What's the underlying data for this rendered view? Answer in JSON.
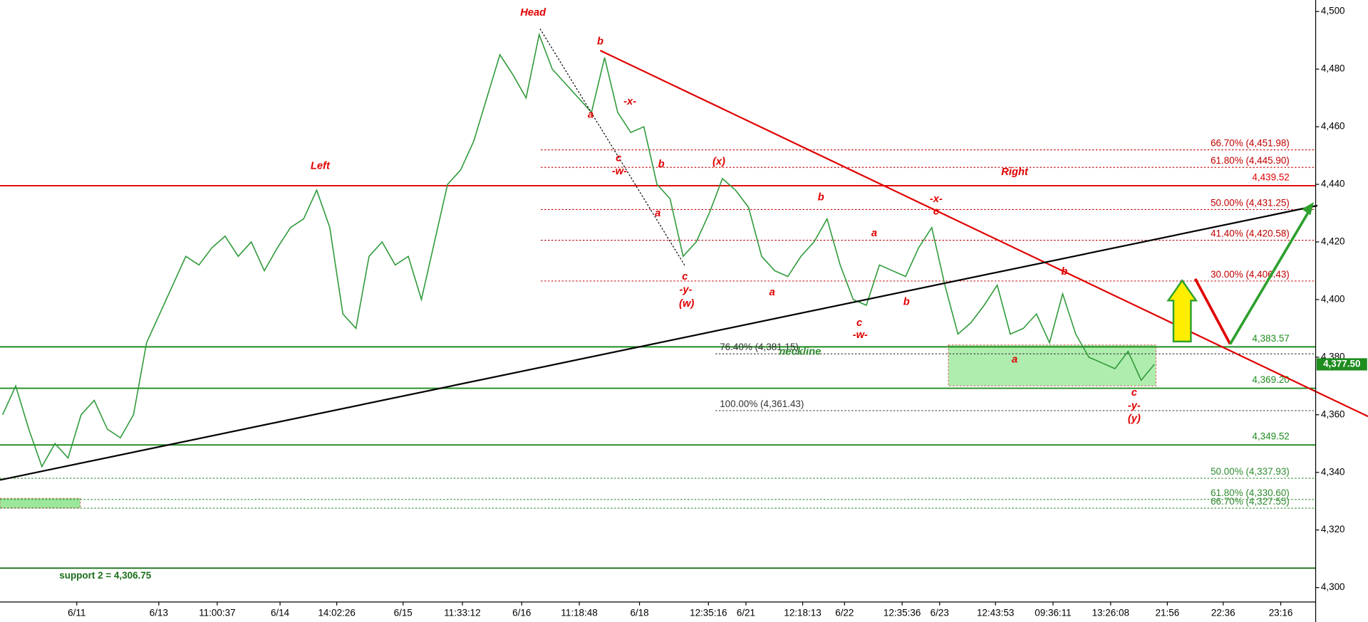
{
  "chart_data": {
    "type": "line",
    "series": [
      {
        "color": "#2f9a3a",
        "values": [
          4360,
          4370,
          4355,
          4342,
          4350,
          4345,
          4360,
          4365,
          4355,
          4352,
          4360,
          4385,
          4395,
          4405,
          4415,
          4412,
          4418,
          4422,
          4415,
          4420,
          4410,
          4418,
          4425,
          4428,
          4438,
          4425,
          4395,
          4390,
          4415,
          4420,
          4412,
          4415,
          4400,
          4420,
          4440,
          4445,
          4455,
          4470,
          4485,
          4478,
          4470,
          4492,
          4480,
          4475,
          4470,
          4465,
          4484,
          4465,
          4458,
          4460,
          4440,
          4435,
          4415,
          4420,
          4430,
          4442,
          4438,
          4432,
          4415,
          4410,
          4408,
          4415,
          4420,
          4428,
          4412,
          4400,
          4398,
          4412,
          4410,
          4408,
          4418,
          4425,
          4405,
          4388,
          4392,
          4398,
          4405,
          4388,
          4390,
          4395,
          4385,
          4402,
          4388,
          4380,
          4378,
          4376,
          4382,
          4372,
          4377.5
        ]
      }
    ],
    "ylim": [
      4295,
      4504
    ],
    "yticks": [
      {
        "value": 4300,
        "label": "4,300"
      },
      {
        "value": 4320,
        "label": "4,320"
      },
      {
        "value": 4340,
        "label": "4,340"
      },
      {
        "value": 4360,
        "label": "4,360"
      },
      {
        "value": 4380,
        "label": "4,380"
      },
      {
        "value": 4400,
        "label": "4,400"
      },
      {
        "value": 4420,
        "label": "4,420"
      },
      {
        "value": 4440,
        "label": "4,440"
      },
      {
        "value": 4460,
        "label": "4,460"
      },
      {
        "value": 4480,
        "label": "4,480"
      },
      {
        "value": 4500,
        "label": "4,500"
      }
    ],
    "x_tick_labels": [
      "6/11",
      "6/13",
      "11:00:37",
      "6/14",
      "14:02:26",
      "6/15",
      "11:33:12",
      "6/16",
      "11:18:48",
      "6/18",
      "12:35:16",
      "6/21",
      "12:18:13",
      "6/22",
      "12:35:36",
      "6/23",
      "12:43:53",
      "09:36:11",
      "13:26:08",
      "21:56",
      "22:36",
      "23:16"
    ],
    "levels": [
      {
        "value": 4439.52,
        "label": "4,439.52",
        "color": "#e00000"
      },
      {
        "value": 4383.57,
        "label": "4,383.57",
        "color": "#1e8c1e"
      },
      {
        "value": 4369.2,
        "label": "4,369.20",
        "color": "#1e8c1e"
      },
      {
        "value": 4349.52,
        "label": "4,349.52",
        "color": "#1e8c1e"
      }
    ],
    "fib_upper": {
      "color": "#c00000",
      "levels": [
        {
          "value": 4451.98,
          "label": "66.70% (4,451.98)"
        },
        {
          "value": 4445.9,
          "label": "61.80% (4,445.90)"
        },
        {
          "value": 4431.25,
          "label": "50.00% (4,431.25)"
        },
        {
          "value": 4420.58,
          "label": "41.40% (4,420.58)"
        },
        {
          "value": 4406.43,
          "label": "30.00% (4,406.43)"
        }
      ]
    },
    "fib_lower": {
      "color": "#2e8b2e",
      "levels": [
        {
          "value": 4337.93,
          "label": "50.00% (4,337.93)"
        },
        {
          "value": 4330.6,
          "label": "61.80% (4,330.60)"
        },
        {
          "value": 4327.55,
          "label": "66.70% (4,327.55)"
        }
      ]
    },
    "fib_mid": {
      "color": "#333333",
      "levels": [
        {
          "value": 4381.15,
          "label": "76.40% (4,381.15)"
        },
        {
          "value": 4361.43,
          "label": "100.00% (4,361.43)"
        }
      ]
    },
    "support": {
      "value": 4306.75,
      "label": "support 2 = 4,306.75",
      "color": "#1a6e1a"
    },
    "last_price": {
      "value": 4377.5,
      "label": "4,377.50",
      "color": "#1e8c1e"
    },
    "annotations": [
      {
        "text": "Head",
        "color": "#e00000"
      },
      {
        "text": "Left",
        "color": "#e00000"
      },
      {
        "text": "Right",
        "color": "#e00000"
      },
      {
        "text": "neckline",
        "color": "#2e8b2e"
      },
      {
        "text": "b",
        "color": "#e00000"
      },
      {
        "text": "-x-",
        "color": "#e00000"
      },
      {
        "text": "a",
        "color": "#e00000"
      },
      {
        "text": "c",
        "color": "#e00000"
      },
      {
        "text": "-w-",
        "color": "#e00000"
      },
      {
        "text": "b",
        "color": "#e00000"
      },
      {
        "text": "a",
        "color": "#e00000"
      },
      {
        "text": "c",
        "color": "#e00000"
      },
      {
        "text": "-y-",
        "color": "#e00000"
      },
      {
        "text": "(w)",
        "color": "#e00000"
      },
      {
        "text": "(x)",
        "color": "#e00000"
      },
      {
        "text": "b",
        "color": "#e00000"
      },
      {
        "text": "a",
        "color": "#e00000"
      },
      {
        "text": "a",
        "color": "#e00000"
      },
      {
        "text": "c",
        "color": "#e00000"
      },
      {
        "text": "-w-",
        "color": "#e00000"
      },
      {
        "text": "b",
        "color": "#e00000"
      },
      {
        "text": "-x-",
        "color": "#e00000"
      },
      {
        "text": "c",
        "color": "#e00000"
      },
      {
        "text": "b",
        "color": "#e00000"
      },
      {
        "text": "a",
        "color": "#e00000"
      },
      {
        "text": "c",
        "color": "#e00000"
      },
      {
        "text": "-y-",
        "color": "#e00000"
      },
      {
        "text": "(y)",
        "color": "#e00000"
      }
    ]
  }
}
